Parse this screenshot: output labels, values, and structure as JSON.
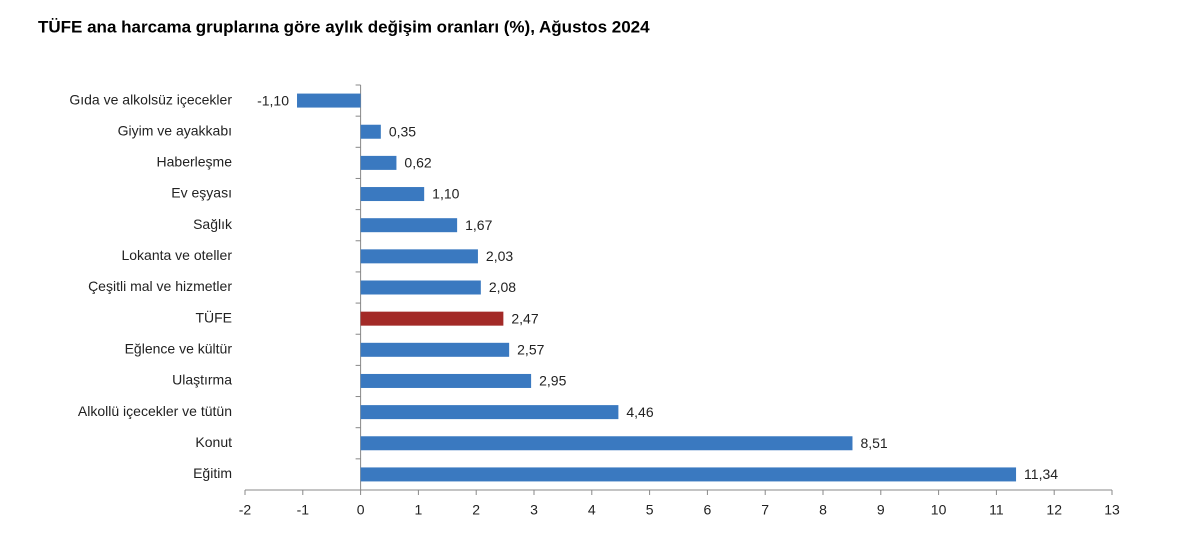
{
  "chart_data": {
    "type": "barh",
    "title": "TÜFE ana harcama gruplarına göre aylık değişim oranları (%), Ağustos 2024",
    "categories": [
      "Gıda ve alkolsüz içecekler",
      "Giyim ve ayakkabı",
      "Haberleşme",
      "Ev eşyası",
      "Sağlık",
      "Lokanta ve oteller",
      "Çeşitli mal ve hizmetler",
      "TÜFE",
      "Eğlence ve kültür",
      "Ulaştırma",
      "Alkollü içecekler ve tütün",
      "Konut",
      "Eğitim"
    ],
    "values": [
      -1.1,
      0.35,
      0.62,
      1.1,
      1.67,
      2.03,
      2.08,
      2.47,
      2.57,
      2.95,
      4.46,
      8.51,
      11.34
    ],
    "value_labels": [
      "-1,10",
      "0,35",
      "0,62",
      "1,10",
      "1,67",
      "2,03",
      "2,08",
      "2,47",
      "2,57",
      "2,95",
      "4,46",
      "8,51",
      "11,34"
    ],
    "colors": [
      "#3a79c0",
      "#3a79c0",
      "#3a79c0",
      "#3a79c0",
      "#3a79c0",
      "#3a79c0",
      "#3a79c0",
      "#a32a27",
      "#3a79c0",
      "#3a79c0",
      "#3a79c0",
      "#3a79c0",
      "#3a79c0"
    ],
    "xlim": [
      -2,
      13
    ],
    "xticks": [
      -2,
      -1,
      0,
      1,
      2,
      3,
      4,
      5,
      6,
      7,
      8,
      9,
      10,
      11,
      12,
      13
    ],
    "grid": false
  }
}
